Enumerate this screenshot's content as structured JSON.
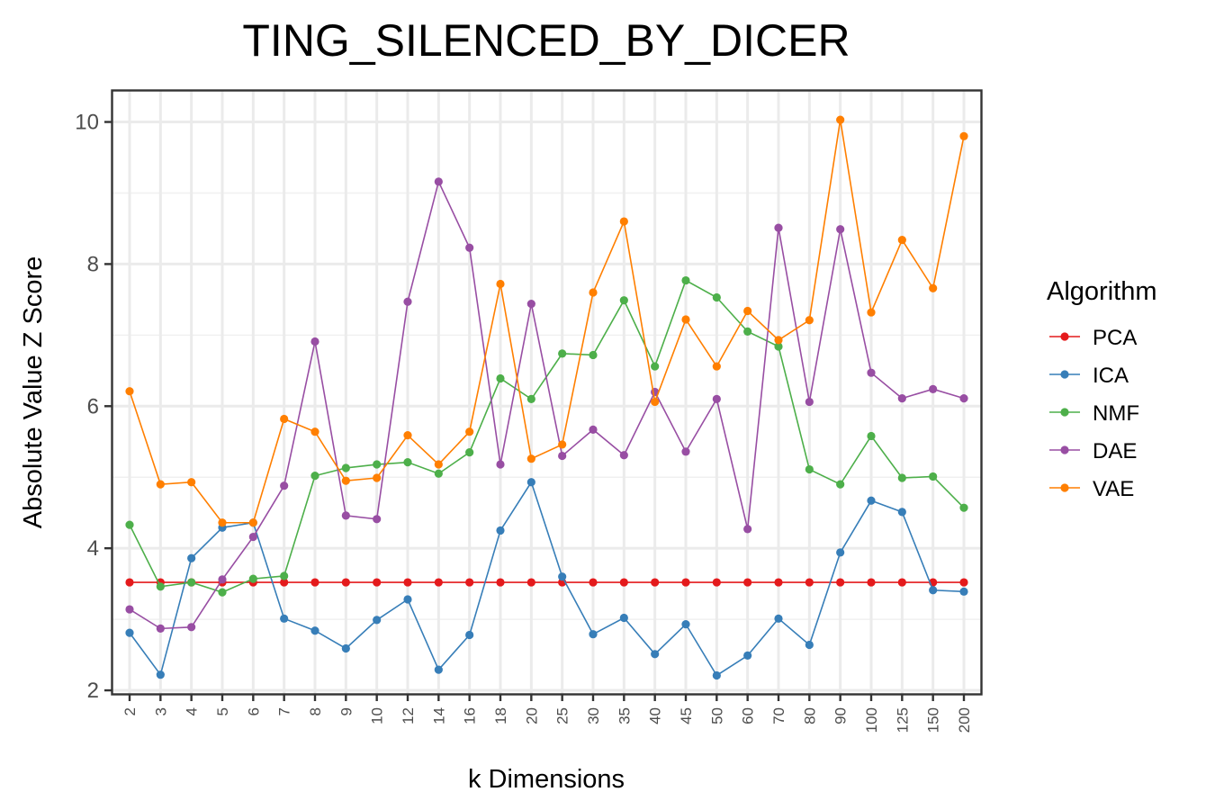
{
  "chart_data": {
    "type": "line",
    "title": "TING_SILENCED_BY_DICER",
    "xlabel": "k Dimensions",
    "ylabel": "Absolute Value Z Score",
    "ylim": [
      1.95,
      10.45
    ],
    "yticks": [
      "2",
      "4",
      "6",
      "8",
      "10"
    ],
    "ytick_values": [
      2,
      4,
      6,
      8,
      10
    ],
    "categories": [
      "2",
      "3",
      "4",
      "5",
      "6",
      "7",
      "8",
      "9",
      "10",
      "12",
      "14",
      "16",
      "18",
      "20",
      "25",
      "30",
      "35",
      "40",
      "45",
      "50",
      "60",
      "70",
      "80",
      "90",
      "100",
      "125",
      "150",
      "200"
    ],
    "grid": true,
    "legend": {
      "title": "Algorithm",
      "position": "right"
    },
    "series": [
      {
        "name": "PCA",
        "color": "#E41A1C",
        "values": [
          3.52,
          3.52,
          3.52,
          3.52,
          3.52,
          3.52,
          3.52,
          3.52,
          3.52,
          3.52,
          3.52,
          3.52,
          3.52,
          3.52,
          3.52,
          3.52,
          3.52,
          3.52,
          3.52,
          3.52,
          3.52,
          3.52,
          3.52,
          3.52,
          3.52,
          3.52,
          3.52,
          3.52
        ]
      },
      {
        "name": "ICA",
        "color": "#377EB8",
        "values": [
          2.81,
          2.22,
          3.86,
          4.29,
          4.36,
          3.01,
          2.84,
          2.59,
          2.99,
          3.28,
          2.29,
          2.78,
          4.25,
          4.93,
          3.6,
          2.79,
          3.02,
          2.51,
          2.93,
          2.21,
          2.49,
          3.01,
          2.64,
          3.94,
          4.67,
          4.51,
          3.41,
          3.39
        ]
      },
      {
        "name": "NMF",
        "color": "#4DAF4A",
        "values": [
          4.33,
          3.46,
          3.52,
          3.38,
          3.57,
          3.61,
          5.02,
          5.13,
          5.18,
          5.21,
          5.05,
          5.35,
          6.39,
          6.1,
          6.74,
          6.72,
          7.49,
          6.56,
          7.77,
          7.53,
          7.05,
          6.84,
          5.11,
          4.9,
          5.58,
          4.99,
          5.01,
          4.57
        ]
      },
      {
        "name": "DAE",
        "color": "#984EA3",
        "values": [
          3.14,
          2.87,
          2.89,
          3.56,
          4.16,
          4.88,
          6.91,
          4.46,
          4.41,
          7.47,
          9.16,
          8.23,
          5.18,
          7.44,
          5.3,
          5.67,
          5.31,
          6.2,
          5.36,
          6.1,
          4.27,
          8.51,
          6.06,
          8.49,
          6.47,
          6.11,
          6.24,
          6.11
        ]
      },
      {
        "name": "VAE",
        "color": "#FF7F00",
        "values": [
          6.21,
          4.9,
          4.93,
          4.36,
          4.36,
          5.82,
          5.64,
          4.95,
          4.99,
          5.59,
          5.18,
          5.64,
          7.72,
          5.26,
          5.46,
          7.6,
          8.6,
          6.06,
          7.22,
          6.56,
          7.34,
          6.93,
          7.21,
          10.03,
          7.32,
          8.34,
          7.66,
          9.8
        ]
      }
    ]
  }
}
